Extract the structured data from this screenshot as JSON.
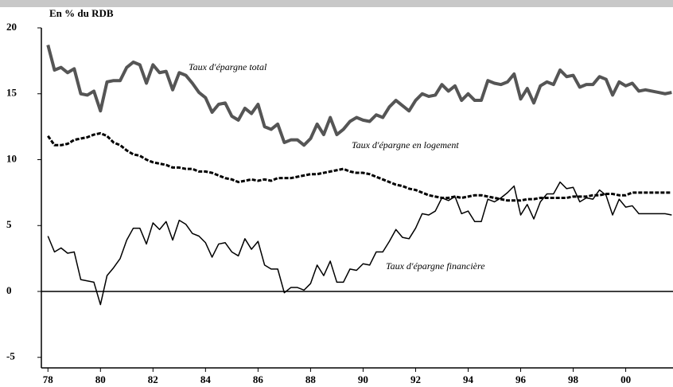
{
  "chart_data": {
    "type": "line",
    "ylabel": "En % du RDB",
    "x": [
      1978,
      1978.25,
      1978.5,
      1978.75,
      1979,
      1979.25,
      1979.5,
      1979.75,
      1980,
      1980.25,
      1980.5,
      1980.75,
      1981,
      1981.25,
      1981.5,
      1981.75,
      1982,
      1982.25,
      1982.5,
      1982.75,
      1983,
      1983.25,
      1983.5,
      1983.75,
      1984,
      1984.25,
      1984.5,
      1984.75,
      1985,
      1985.25,
      1985.5,
      1985.75,
      1986,
      1986.25,
      1986.5,
      1986.75,
      1987,
      1987.25,
      1987.5,
      1987.75,
      1988,
      1988.25,
      1988.5,
      1988.75,
      1989,
      1989.25,
      1989.5,
      1989.75,
      1990,
      1990.25,
      1990.5,
      1990.75,
      1991,
      1991.25,
      1991.5,
      1991.75,
      1992,
      1992.25,
      1992.5,
      1992.75,
      1993,
      1993.25,
      1993.5,
      1993.75,
      1994,
      1994.25,
      1994.5,
      1994.75,
      1995,
      1995.25,
      1995.5,
      1995.75,
      1996,
      1996.25,
      1996.5,
      1996.75,
      1997,
      1997.25,
      1997.5,
      1997.75,
      1998,
      1998.25,
      1998.5,
      1998.75,
      1999,
      1999.25,
      1999.5,
      1999.75,
      2000,
      2000.25,
      2000.5,
      2000.75,
      2001,
      2001.25,
      2001.5,
      2001.75
    ],
    "series": [
      {
        "name": "Taux d'épargne total",
        "color": "#555555",
        "width": 4,
        "dashed": false,
        "values": [
          18.7,
          16.8,
          17,
          16.6,
          16.9,
          15,
          14.9,
          15.2,
          13.7,
          15.9,
          16,
          16,
          17,
          17.4,
          17.2,
          15.8,
          17.2,
          16.6,
          16.7,
          15.3,
          16.6,
          16.4,
          15.8,
          15.1,
          14.7,
          13.6,
          14.2,
          14.3,
          13.3,
          13,
          13.9,
          13.5,
          14.2,
          12.5,
          12.3,
          12.7,
          11.3,
          11.5,
          11.5,
          11.1,
          11.6,
          12.7,
          11.9,
          13.2,
          11.9,
          12.3,
          12.9,
          13.2,
          13,
          12.9,
          13.4,
          13.2,
          14,
          14.5,
          14.1,
          13.7,
          14.5,
          15,
          14.8,
          14.9,
          15.7,
          15.2,
          15.6,
          14.5,
          15,
          14.5,
          14.5,
          16,
          15.8,
          15.7,
          15.9,
          16.5,
          14.6,
          15.4,
          14.3,
          15.6,
          15.9,
          15.7,
          16.8,
          16.3,
          16.4,
          15.5,
          15.7,
          15.7,
          16.3,
          16.1,
          14.9,
          15.9,
          15.6,
          15.8,
          15.2,
          15.3,
          15.2,
          15.1,
          15,
          15.1
        ]
      },
      {
        "name": "Taux d'épargne en logement",
        "color": "#000000",
        "width": 3,
        "dashed": true,
        "values": [
          11.8,
          11.1,
          11.1,
          11.2,
          11.5,
          11.6,
          11.7,
          11.9,
          12,
          11.8,
          11.3,
          11.1,
          10.7,
          10.4,
          10.3,
          10,
          9.8,
          9.7,
          9.6,
          9.4,
          9.4,
          9.3,
          9.3,
          9.1,
          9.1,
          9,
          8.8,
          8.6,
          8.5,
          8.3,
          8.4,
          8.5,
          8.4,
          8.5,
          8.4,
          8.6,
          8.6,
          8.6,
          8.7,
          8.8,
          8.9,
          8.9,
          9,
          9.1,
          9.2,
          9.3,
          9.1,
          9,
          9,
          8.9,
          8.7,
          8.5,
          8.3,
          8.1,
          8,
          7.8,
          7.7,
          7.5,
          7.3,
          7.2,
          7.1,
          7.1,
          7.2,
          7.1,
          7.2,
          7.3,
          7.3,
          7.2,
          7.1,
          7,
          6.9,
          6.9,
          6.9,
          7,
          7,
          7.1,
          7.1,
          7.1,
          7.1,
          7.1,
          7.2,
          7.2,
          7.2,
          7.3,
          7.3,
          7.4,
          7.4,
          7.3,
          7.3,
          7.5,
          7.5,
          7.5,
          7.5,
          7.5,
          7.5,
          7.5
        ]
      },
      {
        "name": "Taux d'épargne financière",
        "color": "#000000",
        "width": 1.5,
        "dashed": false,
        "values": [
          4.2,
          3,
          3.3,
          2.9,
          3,
          0.9,
          0.8,
          0.7,
          -1,
          1.2,
          1.8,
          2.5,
          3.9,
          4.8,
          4.8,
          3.6,
          5.2,
          4.7,
          5.3,
          3.9,
          5.4,
          5.1,
          4.4,
          4.2,
          3.7,
          2.6,
          3.6,
          3.7,
          3,
          2.7,
          4,
          3.2,
          3.8,
          2,
          1.7,
          1.7,
          -0.1,
          0.3,
          0.3,
          0.1,
          0.6,
          2,
          1.2,
          2.3,
          0.7,
          0.7,
          1.7,
          1.6,
          2.1,
          2,
          3,
          3,
          3.8,
          4.7,
          4.1,
          4,
          4.8,
          5.9,
          5.8,
          6.1,
          7.1,
          6.9,
          7.2,
          5.9,
          6.1,
          5.3,
          5.3,
          7,
          6.8,
          7.1,
          7.5,
          8,
          5.8,
          6.6,
          5.5,
          6.8,
          7.4,
          7.4,
          8.3,
          7.8,
          7.9,
          6.8,
          7.1,
          7,
          7.7,
          7.3,
          5.8,
          7,
          6.4,
          6.5,
          5.9,
          5.9,
          5.9,
          5.9,
          5.9,
          5.8
        ]
      }
    ],
    "xlim": [
      1977.75,
      2001.8
    ],
    "xticks": [
      {
        "value": 1978,
        "label": "78"
      },
      {
        "value": 1980,
        "label": "80"
      },
      {
        "value": 1982,
        "label": "82"
      },
      {
        "value": 1984,
        "label": "84"
      },
      {
        "value": 1986,
        "label": "86"
      },
      {
        "value": 1988,
        "label": "88"
      },
      {
        "value": 1990,
        "label": "90"
      },
      {
        "value": 1992,
        "label": "92"
      },
      {
        "value": 1994,
        "label": "94"
      },
      {
        "value": 1996,
        "label": "96"
      },
      {
        "value": 1998,
        "label": "98"
      },
      {
        "value": 2000,
        "label": "00"
      }
    ],
    "ylim": [
      -5.8,
      20
    ],
    "yticks": [
      -5,
      0,
      5,
      10,
      15,
      20
    ],
    "grid": false
  }
}
